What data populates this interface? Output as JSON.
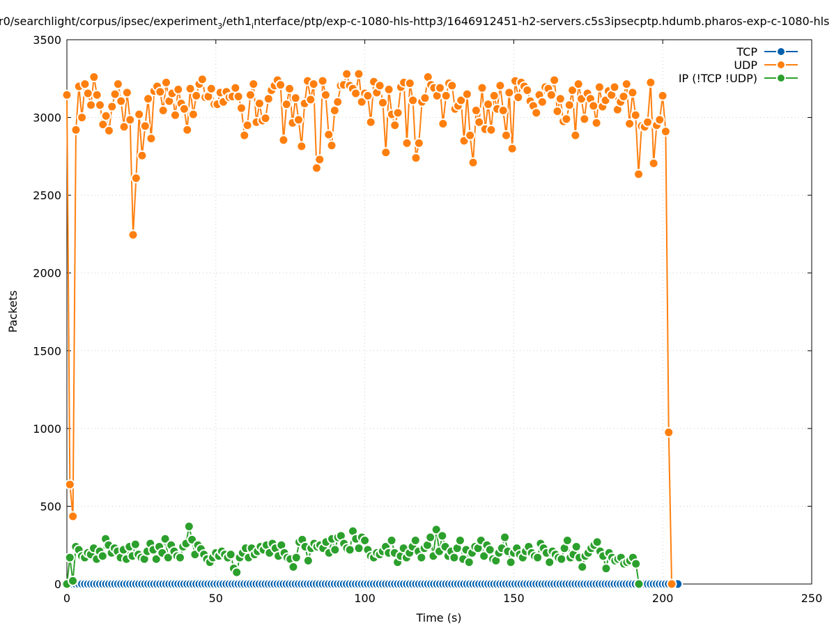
{
  "chart_data": {
    "type": "line",
    "title_parts": [
      "r0/searchlight/corpus/ipsec/experiment",
      "3",
      "/eth1",
      "i",
      "nterface/ptp/exp-c-1080-hls-http3/1646912451-h2-servers.c5s3ipsecptp.hdumb.pharos-exp-c-1080-hls"
    ],
    "xlabel": "Time (s)",
    "ylabel": "Packets",
    "xlim": [
      0,
      250
    ],
    "ylim": [
      0,
      3500
    ],
    "xticks": [
      "0",
      "50",
      "100",
      "150",
      "200",
      "250"
    ],
    "yticks": [
      "0",
      "500",
      "1000",
      "1500",
      "2000",
      "2500",
      "3000",
      "3500"
    ],
    "grid": true,
    "legend_position": "top-right",
    "series": [
      {
        "name": "TCP",
        "color": "#0060ad",
        "x_start": 0,
        "x_step": 1.01,
        "constant_value": 0,
        "count": 204
      },
      {
        "name": "UDP",
        "color": "#ff7f0e",
        "x_start": 0,
        "x_step": 1.01,
        "values": [
          3145,
          640,
          435,
          2920,
          3200,
          3000,
          3215,
          3155,
          3080,
          3260,
          3145,
          3080,
          2955,
          3010,
          2915,
          3070,
          3150,
          3215,
          3105,
          2940,
          3160,
          2985,
          2245,
          2610,
          3020,
          2755,
          2945,
          3120,
          2865,
          3170,
          3200,
          3165,
          3045,
          3225,
          3105,
          3155,
          3015,
          3180,
          3090,
          3055,
          2920,
          3185,
          3020,
          3140,
          3215,
          3245,
          3130,
          3135,
          3185,
          3085,
          3085,
          3160,
          3100,
          3165,
          3130,
          3135,
          3190,
          3135,
          3060,
          2885,
          2950,
          3145,
          3215,
          2970,
          3090,
          2980,
          2995,
          3120,
          3175,
          3205,
          3240,
          3210,
          2855,
          3085,
          3185,
          2965,
          3125,
          2985,
          2815,
          3090,
          3235,
          3115,
          3215,
          2675,
          2730,
          3235,
          3145,
          2890,
          2820,
          3045,
          3100,
          3205,
          3210,
          3280,
          3205,
          3185,
          3155,
          3280,
          3100,
          3155,
          3140,
          2970,
          3230,
          3160,
          3205,
          3095,
          2775,
          3180,
          3020,
          2950,
          3030,
          3195,
          3225,
          2835,
          3220,
          3110,
          2740,
          2835,
          3100,
          3125,
          3260,
          3210,
          3190,
          3140,
          3190,
          2960,
          3140,
          3220,
          3205,
          3055,
          3075,
          3110,
          2850,
          3150,
          2885,
          2710,
          3045,
          2970,
          3190,
          2925,
          3085,
          2920,
          3140,
          3055,
          3205,
          3045,
          2885,
          3160,
          2800,
          3235,
          3130,
          3225,
          3200,
          3175,
          3105,
          3075,
          3030,
          3145,
          3100,
          3195,
          3185,
          3145,
          3240,
          3040,
          3120,
          2975,
          2990,
          3080,
          3175,
          2885,
          3215,
          3120,
          2990,
          3155,
          3120,
          3075,
          2965,
          3195,
          3070,
          3110,
          3170,
          3145,
          3195,
          3050,
          3100,
          3135,
          3215,
          2960,
          3160,
          3015,
          2635,
          2945,
          2940,
          2970,
          3225,
          2705,
          2950,
          2985,
          3140,
          2910,
          975,
          0
        ]
      },
      {
        "name": "IP (!TCP  !UDP)",
        "color": "#2ca02c",
        "x_start": 0,
        "x_step": 1.0,
        "values": [
          0,
          170,
          20,
          240,
          220,
          180,
          170,
          200,
          190,
          230,
          160,
          210,
          180,
          290,
          250,
          200,
          230,
          210,
          170,
          220,
          160,
          240,
          180,
          255,
          190,
          170,
          160,
          210,
          260,
          220,
          160,
          240,
          200,
          290,
          170,
          250,
          210,
          180,
          170,
          240,
          260,
          370,
          285,
          190,
          250,
          225,
          190,
          160,
          140,
          170,
          200,
          180,
          210,
          190,
          170,
          190,
          100,
          75,
          170,
          200,
          230,
          170,
          230,
          190,
          210,
          240,
          220,
          250,
          200,
          260,
          230,
          180,
          250,
          200,
          170,
          160,
          110,
          170,
          270,
          285,
          240,
          150,
          230,
          260,
          240,
          250,
          230,
          270,
          200,
          290,
          220,
          300,
          310,
          260,
          230,
          220,
          340,
          290,
          230,
          300,
          280,
          220,
          180,
          170,
          200,
          190,
          210,
          240,
          200,
          280,
          200,
          140,
          180,
          230,
          170,
          200,
          240,
          280,
          210,
          170,
          230,
          250,
          300,
          180,
          350,
          210,
          310,
          240,
          180,
          210,
          170,
          230,
          280,
          160,
          220,
          140,
          200,
          240,
          230,
          280,
          180,
          250,
          220,
          160,
          150,
          200,
          230,
          300,
          210,
          140,
          200,
          230,
          190,
          170,
          210,
          240,
          200,
          180,
          170,
          260,
          230,
          200,
          140,
          210,
          190,
          170,
          160,
          230,
          280,
          170,
          190,
          240,
          170,
          110,
          180,
          200,
          230,
          250,
          270,
          210,
          180,
          100,
          200,
          170,
          150,
          160,
          170,
          130,
          140,
          150,
          170,
          130,
          0
        ]
      }
    ]
  }
}
